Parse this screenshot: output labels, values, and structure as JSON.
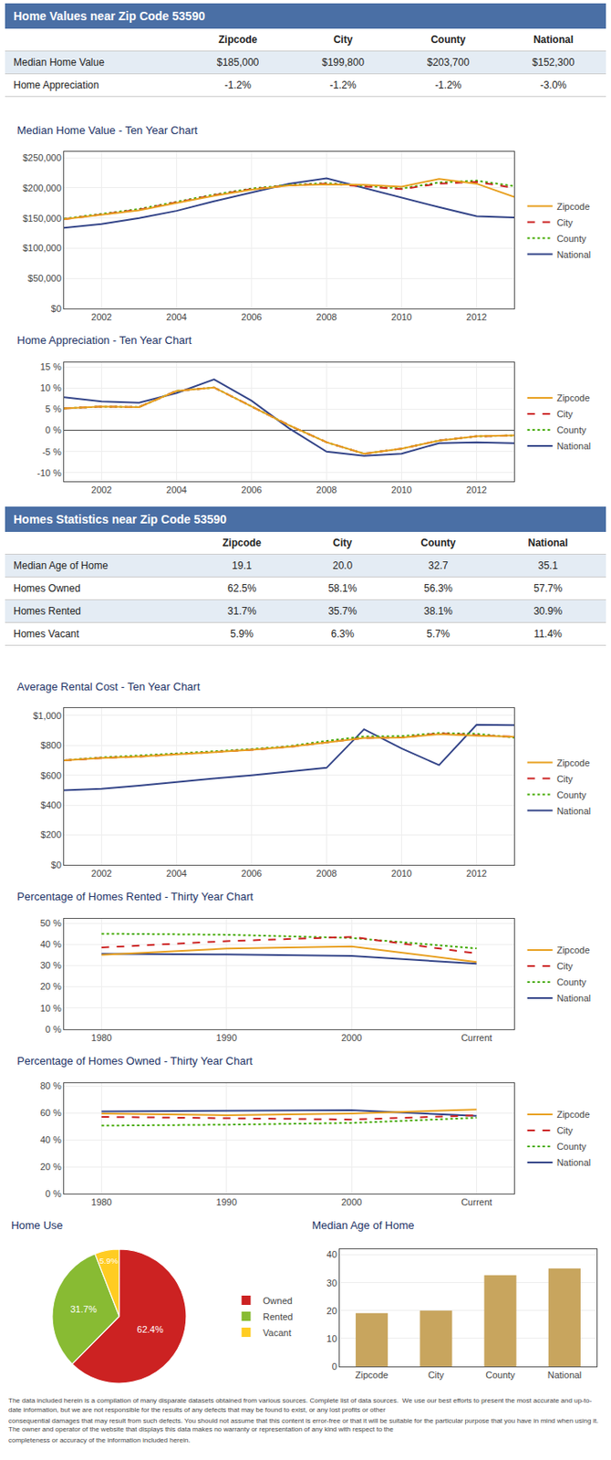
{
  "chart_data": [
    {
      "type": "table",
      "title": "Home Values near Zip Code 53590",
      "categories": [
        "Zipcode",
        "City",
        "County",
        "National"
      ],
      "series": [
        {
          "name": "Median Home Value",
          "values": [
            185000,
            199800,
            203700,
            152300
          ],
          "value_labels": [
            "$185,000",
            "$199,800",
            "$203,700",
            "$152,300"
          ]
        },
        {
          "name": "Home Appreciation",
          "values": [
            -1.2,
            -1.2,
            -1.2,
            -3.0
          ],
          "value_labels": [
            "-1.2%",
            "-1.2%",
            "-1.2%",
            "-3.0%"
          ]
        }
      ]
    },
    {
      "type": "line",
      "title": "Median Home Value - Ten Year Chart",
      "x": [
        2001,
        2002,
        2003,
        2004,
        2005,
        2006,
        2007,
        2008,
        2009,
        2010,
        2011,
        2012,
        2013
      ],
      "xlim": [
        2001,
        2013
      ],
      "xticks": [
        2002,
        2004,
        2006,
        2008,
        2010,
        2012
      ],
      "ylim": [
        0,
        260000
      ],
      "yticks": [
        {
          "value": 0,
          "label": "$0"
        },
        {
          "value": 50000,
          "label": "$50,000"
        },
        {
          "value": 100000,
          "label": "$100,000"
        },
        {
          "value": 150000,
          "label": "$150,000"
        },
        {
          "value": 200000,
          "label": "$200,000"
        },
        {
          "value": 250000,
          "label": "$250,000"
        }
      ],
      "grid": true,
      "legend": "right",
      "series": [
        {
          "name": "Zipcode",
          "color": "#e8a020",
          "line_style": "solid",
          "values": [
            148000,
            155000,
            163000,
            175000,
            187000,
            197000,
            204000,
            206000,
            205000,
            202000,
            215000,
            207000,
            185000
          ]
        },
        {
          "name": "City",
          "color": "#cc2222",
          "line_style": "dashed",
          "values": [
            148000,
            156000,
            164000,
            176000,
            188000,
            198000,
            204000,
            207000,
            203000,
            198000,
            207000,
            210000,
            200000
          ]
        },
        {
          "name": "County",
          "color": "#44aa00",
          "line_style": "dotted",
          "values": [
            149000,
            157000,
            165000,
            177000,
            189000,
            199000,
            205000,
            208000,
            204000,
            199000,
            209000,
            212000,
            203000
          ]
        },
        {
          "name": "National",
          "color": "#334488",
          "line_style": "solid",
          "values": [
            134000,
            140000,
            150000,
            162000,
            178000,
            193000,
            207000,
            216000,
            200000,
            183000,
            168000,
            153000,
            151000
          ]
        }
      ]
    },
    {
      "type": "line",
      "title": "Home Appreciation - Ten Year Chart",
      "x": [
        2001,
        2002,
        2003,
        2004,
        2005,
        2006,
        2007,
        2008,
        2009,
        2010,
        2011,
        2012,
        2013
      ],
      "xlim": [
        2001,
        2013
      ],
      "xticks": [
        2002,
        2004,
        2006,
        2008,
        2010,
        2012
      ],
      "ylim": [
        -12,
        16
      ],
      "yticks": [
        {
          "value": -10,
          "label": "-10 %"
        },
        {
          "value": -5,
          "label": "-5 %"
        },
        {
          "value": 0,
          "label": "0 %"
        },
        {
          "value": 5,
          "label": "5 %"
        },
        {
          "value": 10,
          "label": "10 %"
        },
        {
          "value": 15,
          "label": "15 %"
        }
      ],
      "grid": true,
      "legend": "right",
      "series": [
        {
          "name": "Zipcode",
          "color": "#e8a020",
          "line_style": "solid",
          "values": [
            5.2,
            5.6,
            5.5,
            9.3,
            10.1,
            5.6,
            1.2,
            -2.8,
            -5.5,
            -4.3,
            -2.4,
            -1.4,
            -1.2
          ]
        },
        {
          "name": "City",
          "color": "#cc2222",
          "line_style": "dashed",
          "values": [
            5.2,
            5.6,
            5.5,
            9.3,
            10.1,
            5.6,
            1.2,
            -2.8,
            -5.5,
            -4.3,
            -2.4,
            -1.4,
            -1.2
          ]
        },
        {
          "name": "County",
          "color": "#44aa00",
          "line_style": "dotted",
          "values": [
            5.2,
            5.6,
            5.5,
            9.3,
            10.1,
            5.6,
            1.2,
            -2.8,
            -5.5,
            -4.3,
            -2.4,
            -1.4,
            -1.2
          ]
        },
        {
          "name": "National",
          "color": "#334488",
          "line_style": "solid",
          "values": [
            7.8,
            6.8,
            6.5,
            8.8,
            12.0,
            7.0,
            0.5,
            -5.0,
            -6.0,
            -5.5,
            -3.0,
            -2.8,
            -3.0
          ]
        }
      ]
    },
    {
      "type": "table",
      "title": "Homes Statistics near Zip Code 53590",
      "categories": [
        "Zipcode",
        "City",
        "County",
        "National"
      ],
      "series": [
        {
          "name": "Median Age of Home",
          "values": [
            19.1,
            20.0,
            32.7,
            35.1
          ],
          "value_labels": [
            "19.1",
            "20.0",
            "32.7",
            "35.1"
          ]
        },
        {
          "name": "Homes Owned",
          "values": [
            62.5,
            58.1,
            56.3,
            57.7
          ],
          "value_labels": [
            "62.5%",
            "58.1%",
            "56.3%",
            "57.7%"
          ]
        },
        {
          "name": "Homes Rented",
          "values": [
            31.7,
            35.7,
            38.1,
            30.9
          ],
          "value_labels": [
            "31.7%",
            "35.7%",
            "38.1%",
            "30.9%"
          ]
        },
        {
          "name": "Homes Vacant",
          "values": [
            5.9,
            6.3,
            5.7,
            11.4
          ],
          "value_labels": [
            "5.9%",
            "6.3%",
            "5.7%",
            "11.4%"
          ]
        }
      ]
    },
    {
      "type": "line",
      "title": "Average Rental Cost - Ten Year Chart",
      "x": [
        2001,
        2002,
        2003,
        2004,
        2005,
        2006,
        2007,
        2008,
        2009,
        2010,
        2011,
        2012,
        2013
      ],
      "xlim": [
        2001,
        2013
      ],
      "xticks": [
        2002,
        2004,
        2006,
        2008,
        2010,
        2012
      ],
      "ylim": [
        0,
        1050
      ],
      "yticks": [
        {
          "value": 0,
          "label": "$0"
        },
        {
          "value": 200,
          "label": "$200"
        },
        {
          "value": 400,
          "label": "$400"
        },
        {
          "value": 600,
          "label": "$600"
        },
        {
          "value": 800,
          "label": "$800"
        },
        {
          "value": 1000,
          "label": "$1,000"
        }
      ],
      "grid": true,
      "legend": "right",
      "series": [
        {
          "name": "Zipcode",
          "color": "#e8a020",
          "line_style": "solid",
          "values": [
            700,
            715,
            725,
            740,
            755,
            770,
            790,
            820,
            850,
            852,
            875,
            865,
            858
          ]
        },
        {
          "name": "City",
          "color": "#cc2222",
          "line_style": "dashed",
          "values": [
            700,
            715,
            725,
            740,
            755,
            770,
            790,
            820,
            850,
            852,
            880,
            868,
            858
          ]
        },
        {
          "name": "County",
          "color": "#44aa00",
          "line_style": "dotted",
          "values": [
            700,
            720,
            732,
            745,
            760,
            775,
            795,
            830,
            860,
            862,
            883,
            878,
            852
          ]
        },
        {
          "name": "National",
          "color": "#334488",
          "line_style": "solid",
          "values": [
            500,
            510,
            530,
            555,
            578,
            600,
            626,
            650,
            908,
            780,
            668,
            938,
            935
          ]
        }
      ]
    },
    {
      "type": "line",
      "title": "Percentage of Homes Rented - Thirty Year Chart",
      "categories": [
        "1980",
        "1990",
        "2000",
        "Current"
      ],
      "ylim": [
        0,
        52
      ],
      "yticks": [
        {
          "value": 0,
          "label": "0 %"
        },
        {
          "value": 10,
          "label": "10 %"
        },
        {
          "value": 20,
          "label": "20 %"
        },
        {
          "value": 30,
          "label": "30 %"
        },
        {
          "value": 40,
          "label": "40 %"
        },
        {
          "value": 50,
          "label": "50 %"
        }
      ],
      "grid": true,
      "legend": "right",
      "series": [
        {
          "name": "Zipcode",
          "color": "#e8a020",
          "line_style": "solid",
          "values": [
            35.0,
            38.0,
            39.0,
            31.7
          ]
        },
        {
          "name": "City",
          "color": "#cc2222",
          "line_style": "dashed",
          "values": [
            38.5,
            41.5,
            43.5,
            35.7
          ]
        },
        {
          "name": "County",
          "color": "#44aa00",
          "line_style": "dotted",
          "values": [
            45.0,
            44.5,
            43.0,
            38.1
          ]
        },
        {
          "name": "National",
          "color": "#334488",
          "line_style": "solid",
          "values": [
            35.5,
            35.2,
            34.5,
            30.9
          ]
        }
      ]
    },
    {
      "type": "line",
      "title": "Percentage of Homes Owned - Thirty Year Chart",
      "categories": [
        "1980",
        "1990",
        "2000",
        "Current"
      ],
      "ylim": [
        0,
        82
      ],
      "yticks": [
        {
          "value": 0,
          "label": "0 %"
        },
        {
          "value": 20,
          "label": "20 %"
        },
        {
          "value": 40,
          "label": "40 %"
        },
        {
          "value": 60,
          "label": "60 %"
        },
        {
          "value": 80,
          "label": "80 %"
        }
      ],
      "grid": true,
      "legend": "right",
      "series": [
        {
          "name": "Zipcode",
          "color": "#e8a020",
          "line_style": "solid",
          "values": [
            59.5,
            58.2,
            59.5,
            62.5
          ]
        },
        {
          "name": "City",
          "color": "#cc2222",
          "line_style": "dashed",
          "values": [
            57.0,
            56.0,
            55.0,
            58.1
          ]
        },
        {
          "name": "County",
          "color": "#44aa00",
          "line_style": "dotted",
          "values": [
            50.5,
            51.2,
            52.5,
            56.3
          ]
        },
        {
          "name": "National",
          "color": "#334488",
          "line_style": "solid",
          "values": [
            61.0,
            61.5,
            62.0,
            57.7
          ]
        }
      ]
    },
    {
      "type": "pie",
      "title": "Home Use",
      "categories": [
        "Owned",
        "Rented",
        "Vacant"
      ],
      "values": [
        62.4,
        31.7,
        5.9
      ],
      "value_labels": [
        "62.4%",
        "31.7%",
        "5.9%"
      ],
      "colors": [
        "#cc2222",
        "#88bb33",
        "#ffcc22"
      ],
      "data_labels": true,
      "legend": "right"
    },
    {
      "type": "bar",
      "title": "Median Age of Home",
      "categories": [
        "Zipcode",
        "City",
        "County",
        "National"
      ],
      "values": [
        19.1,
        20.0,
        32.7,
        35.1
      ],
      "color": "#c8a55e",
      "ylim": [
        0,
        42
      ],
      "yticks": [
        0,
        10,
        20,
        30,
        40
      ],
      "grid": true
    },
    {
      "type": "text",
      "annotations": [
        "The data included herein is a compilation of many disparate datasets obtained from various sources. Complete list of data sources.  We use our best efforts to present the most accurate and up-to-date information, but we are not responsible for the results of any defects that may be found to exist, or any lost profits or other",
        "consequential damages that may result from such defects. You should not assume that this content is error-free or that it will be suitable for the particular purpose that you have in mind when using it. The owner and operator of the website that displays this data makes no warranty or representation of any kind with respect to the",
        "completeness or accuracy of the information included herein."
      ]
    }
  ]
}
